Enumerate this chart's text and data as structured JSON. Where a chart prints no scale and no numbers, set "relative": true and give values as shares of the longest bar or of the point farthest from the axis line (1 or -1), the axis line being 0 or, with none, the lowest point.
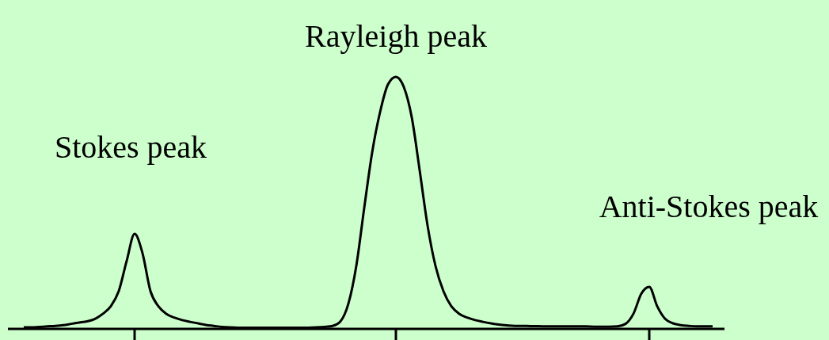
{
  "chart_data": {
    "type": "line",
    "relative": true,
    "categories": [
      null,
      null,
      null,
      null,
      null,
      null,
      null,
      null,
      null,
      null,
      null,
      null,
      null,
      null,
      null,
      null,
      null,
      null,
      null,
      null,
      null,
      null,
      null,
      null,
      null,
      null,
      null,
      null,
      null,
      null,
      null,
      null,
      null,
      null,
      null,
      null,
      null,
      null,
      null,
      null,
      null,
      null,
      null,
      null,
      null,
      null,
      null,
      null,
      null,
      null,
      null,
      null,
      null,
      null,
      null,
      null,
      null,
      null,
      null,
      null,
      null,
      null,
      null,
      null,
      null,
      null,
      null,
      null,
      null,
      null,
      null,
      null,
      null,
      null,
      null,
      null,
      null,
      null,
      null,
      null,
      null,
      null,
      null,
      null,
      null,
      null,
      null,
      null
    ],
    "series": [
      {
        "color": "#000000",
        "values": [
          0.006,
          0.006,
          0.008,
          0.01,
          0.012,
          0.015,
          0.02,
          0.025,
          0.03,
          0.04,
          0.06,
          0.09,
          0.15,
          0.27,
          0.377,
          0.3,
          0.15,
          0.09,
          0.06,
          0.045,
          0.035,
          0.028,
          0.022,
          0.016,
          0.012,
          0.008,
          0.006,
          0.005,
          0.005,
          0.005,
          0.005,
          0.005,
          0.005,
          0.005,
          0.005,
          0.005,
          0.005,
          0.006,
          0.008,
          0.012,
          0.03,
          0.1,
          0.25,
          0.48,
          0.7,
          0.86,
          0.97,
          1,
          0.96,
          0.84,
          0.63,
          0.41,
          0.25,
          0.15,
          0.09,
          0.06,
          0.045,
          0.035,
          0.028,
          0.022,
          0.017,
          0.014,
          0.012,
          0.012,
          0.011,
          0.011,
          0.01,
          0.01,
          0.01,
          0.01,
          0.01,
          0.01,
          0.009,
          0.009,
          0.009,
          0.01,
          0.02,
          0.06,
          0.14,
          0.167,
          0.09,
          0.04,
          0.022,
          0.015,
          0.012,
          0.01,
          0.01,
          0.01
        ]
      }
    ],
    "annotations": [
      "Stokes peak",
      "Rayleigh peak",
      "Anti-Stokes peak"
    ],
    "marker": "none",
    "line_style": "solid"
  }
}
